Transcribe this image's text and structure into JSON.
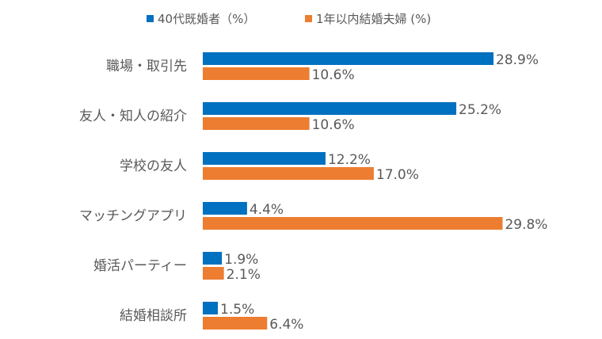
{
  "chart_data": {
    "type": "bar",
    "orientation": "horizontal",
    "categories": [
      "職場・取引先",
      "友人・知人の紹介",
      "学校の友人",
      "マッチングアプリ",
      "婚活パーティー",
      "結婚相談所"
    ],
    "series": [
      {
        "name": "40代既婚者（%）",
        "color": "#0070C0",
        "values": [
          28.9,
          25.2,
          12.2,
          4.4,
          1.9,
          1.5
        ],
        "labels": [
          "28.9%",
          "25.2%",
          "12.2%",
          "4.4%",
          "1.9%",
          "1.5%"
        ]
      },
      {
        "name": "1年以内結婚夫婦 (%)",
        "color": "#ED7D31",
        "values": [
          10.6,
          10.6,
          17.0,
          29.8,
          2.1,
          6.4
        ],
        "labels": [
          "10.6%",
          "10.6%",
          "17.0%",
          "29.8%",
          "2.1%",
          "6.4%"
        ]
      }
    ],
    "xlim": [
      0,
      30
    ],
    "grid": false,
    "legend": "top"
  }
}
